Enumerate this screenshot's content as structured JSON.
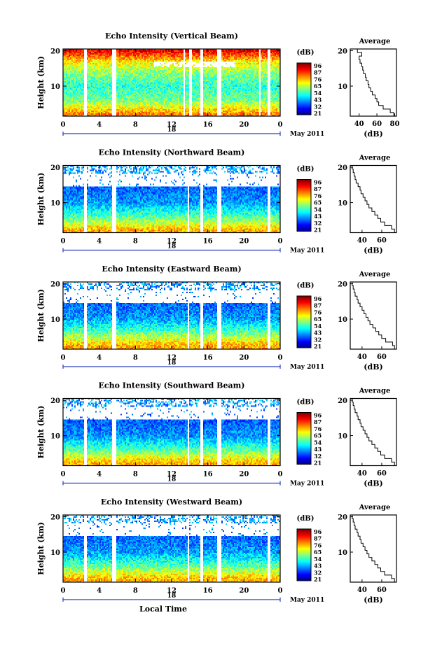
{
  "figure": {
    "xlabel": "Local Time",
    "date_label": "May 2011",
    "day_label": "18",
    "cbar_unit": "(dB)",
    "cbar_ticks": [
      "96",
      "87",
      "76",
      "65",
      "54",
      "43",
      "32",
      "21"
    ],
    "avg_title": "Average",
    "avg_xlabel": "(dB)"
  },
  "chart_data": [
    {
      "type": "heatmap",
      "title": "Echo Intensity (Vertical Beam)",
      "ylabel": "Height (km)",
      "xlim": [
        0,
        24
      ],
      "ylim": [
        1.5,
        20.5
      ],
      "xticks": [
        "0",
        "4",
        "8",
        "12",
        "16",
        "20",
        "0"
      ],
      "yticks": [
        "10",
        "20"
      ],
      "colorbar": {
        "label": "(dB)",
        "range": [
          21,
          96
        ]
      },
      "gaps": [
        [
          2.3,
          2.7
        ],
        [
          5.4,
          5.9
        ],
        [
          13.3,
          13.5
        ],
        [
          14.0,
          14.2
        ],
        [
          15.2,
          15.5
        ],
        [
          17.1,
          17.5
        ],
        [
          21.7,
          21.9
        ],
        [
          22.6,
          22.9
        ]
      ],
      "profile": [
        [
          20,
          88
        ],
        [
          17,
          70
        ],
        [
          14,
          60
        ],
        [
          10,
          52
        ],
        [
          6,
          58
        ],
        [
          3,
          72
        ],
        [
          2,
          78
        ]
      ],
      "average": {
        "xlabel": "(dB)",
        "xlim": [
          30,
          82
        ],
        "xticks": [
          "40",
          "60",
          "80"
        ],
        "ylim": [
          1.5,
          20.5
        ],
        "heights": [
          2,
          3,
          4,
          5,
          6,
          7,
          8,
          9,
          10,
          11,
          12,
          13,
          14,
          15,
          16,
          17,
          18,
          19,
          20
        ],
        "values": [
          79,
          75,
          67,
          62,
          60,
          58,
          55,
          53,
          51,
          50,
          48,
          47,
          45,
          44,
          43,
          41,
          40,
          43,
          38
        ]
      }
    },
    {
      "type": "heatmap",
      "title": "Echo Intensity (Northward Beam)",
      "ylabel": "Height (km)",
      "xlim": [
        0,
        24
      ],
      "ylim": [
        1.5,
        20.5
      ],
      "xticks": [
        "0",
        "4",
        "8",
        "12",
        "16",
        "20",
        "0"
      ],
      "yticks": [
        "10",
        "20"
      ],
      "colorbar": {
        "label": "(dB)",
        "range": [
          21,
          96
        ]
      },
      "gaps": [
        [
          2.3,
          2.7
        ],
        [
          5.4,
          5.9
        ],
        [
          13.8,
          14.0
        ],
        [
          15.2,
          15.5
        ],
        [
          17.1,
          17.5
        ],
        [
          22.6,
          22.9
        ]
      ],
      "profile": [
        [
          20,
          42
        ],
        [
          17,
          40
        ],
        [
          14,
          38
        ],
        [
          10,
          42
        ],
        [
          6,
          55
        ],
        [
          3,
          70
        ],
        [
          2,
          74
        ]
      ],
      "average": {
        "xlabel": "(dB)",
        "xlim": [
          28,
          75
        ],
        "xticks": [
          "40",
          "60"
        ],
        "ylim": [
          1.5,
          20.5
        ],
        "heights": [
          2,
          3,
          4,
          5,
          6,
          7,
          8,
          9,
          10,
          11,
          12,
          13,
          14,
          15,
          16,
          17,
          18,
          19,
          20
        ],
        "values": [
          73,
          70,
          63,
          59,
          56,
          53,
          50,
          47,
          45,
          43,
          41,
          39,
          38,
          36,
          34,
          33,
          32,
          31,
          30
        ]
      }
    },
    {
      "type": "heatmap",
      "title": "Echo Intensity (Eastward Beam)",
      "ylabel": "Height (km)",
      "xlim": [
        0,
        24
      ],
      "ylim": [
        1.5,
        20.5
      ],
      "xticks": [
        "0",
        "4",
        "8",
        "12",
        "16",
        "20",
        "0"
      ],
      "yticks": [
        "10",
        "20"
      ],
      "colorbar": {
        "label": "(dB)",
        "range": [
          21,
          96
        ]
      },
      "gaps": [
        [
          2.3,
          2.7
        ],
        [
          5.4,
          5.9
        ],
        [
          13.8,
          14.0
        ],
        [
          15.2,
          15.5
        ],
        [
          17.1,
          17.5
        ],
        [
          22.6,
          22.9
        ]
      ],
      "profile": [
        [
          20,
          42
        ],
        [
          17,
          40
        ],
        [
          14,
          38
        ],
        [
          10,
          42
        ],
        [
          6,
          57
        ],
        [
          3,
          72
        ],
        [
          2,
          75
        ]
      ],
      "average": {
        "xlabel": "(dB)",
        "xlim": [
          28,
          75
        ],
        "xticks": [
          "40",
          "60"
        ],
        "ylim": [
          1.5,
          20.5
        ],
        "heights": [
          2,
          3,
          4,
          5,
          6,
          7,
          8,
          9,
          10,
          11,
          12,
          13,
          14,
          15,
          16,
          17,
          18,
          19,
          20
        ],
        "values": [
          73,
          71,
          64,
          60,
          57,
          54,
          51,
          48,
          46,
          44,
          42,
          40,
          38,
          36,
          35,
          33,
          32,
          31,
          30
        ]
      }
    },
    {
      "type": "heatmap",
      "title": "Echo Intensity (Southward Beam)",
      "ylabel": "Height (km)",
      "xlim": [
        0,
        24
      ],
      "ylim": [
        1.5,
        20.5
      ],
      "xticks": [
        "0",
        "4",
        "8",
        "12",
        "16",
        "20",
        "0"
      ],
      "yticks": [
        "10",
        "20"
      ],
      "colorbar": {
        "label": "(dB)",
        "range": [
          21,
          96
        ]
      },
      "gaps": [
        [
          2.3,
          2.7
        ],
        [
          5.4,
          5.9
        ],
        [
          13.8,
          14.0
        ],
        [
          15.2,
          15.5
        ],
        [
          17.1,
          17.5
        ],
        [
          22.6,
          22.9
        ]
      ],
      "profile": [
        [
          20,
          42
        ],
        [
          17,
          40
        ],
        [
          14,
          37
        ],
        [
          10,
          41
        ],
        [
          6,
          55
        ],
        [
          3,
          71
        ],
        [
          2,
          74
        ]
      ],
      "average": {
        "xlabel": "(dB)",
        "xlim": [
          28,
          75
        ],
        "xticks": [
          "40",
          "60"
        ],
        "ylim": [
          1.5,
          20.5
        ],
        "heights": [
          2,
          3,
          4,
          5,
          6,
          7,
          8,
          9,
          10,
          11,
          12,
          13,
          14,
          15,
          16,
          17,
          18,
          19,
          20
        ],
        "values": [
          73,
          70,
          63,
          59,
          56,
          53,
          50,
          47,
          45,
          43,
          41,
          39,
          38,
          36,
          35,
          33,
          32,
          31,
          30
        ]
      }
    },
    {
      "type": "heatmap",
      "title": "Echo Intensity (Westward Beam)",
      "ylabel": "Height (km)",
      "xlim": [
        0,
        24
      ],
      "ylim": [
        1.5,
        20.5
      ],
      "xticks": [
        "0",
        "4",
        "8",
        "12",
        "16",
        "20",
        "0"
      ],
      "yticks": [
        "10",
        "20"
      ],
      "colorbar": {
        "label": "(dB)",
        "range": [
          21,
          96
        ]
      },
      "gaps": [
        [
          2.3,
          2.7
        ],
        [
          5.4,
          5.9
        ],
        [
          13.8,
          14.0
        ],
        [
          15.2,
          15.5
        ],
        [
          17.1,
          17.5
        ],
        [
          22.6,
          22.9
        ]
      ],
      "profile": [
        [
          20,
          42
        ],
        [
          17,
          40
        ],
        [
          14,
          38
        ],
        [
          10,
          42
        ],
        [
          6,
          56
        ],
        [
          3,
          71
        ],
        [
          2,
          74
        ]
      ],
      "average": {
        "xlabel": "(dB)",
        "xlim": [
          28,
          75
        ],
        "xticks": [
          "40",
          "60"
        ],
        "ylim": [
          1.5,
          20.5
        ],
        "heights": [
          2,
          3,
          4,
          5,
          6,
          7,
          8,
          9,
          10,
          11,
          12,
          13,
          14,
          15,
          16,
          17,
          18,
          19,
          20
        ],
        "values": [
          73,
          70,
          63,
          59,
          56,
          53,
          50,
          47,
          45,
          43,
          41,
          39,
          38,
          36,
          35,
          33,
          32,
          31,
          30
        ]
      }
    }
  ]
}
